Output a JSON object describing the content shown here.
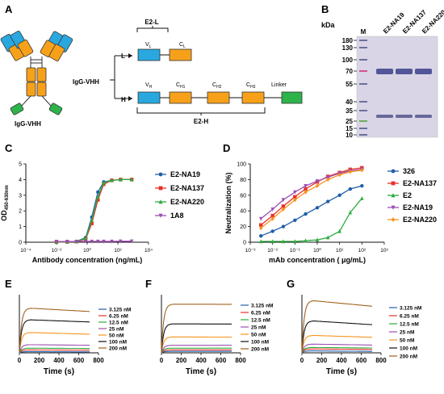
{
  "panels": {
    "A": {
      "label": "A",
      "antibody_label": "IgG-VHH",
      "construct_label": "IgG-VHH",
      "light_label": "L",
      "heavy_label": "H",
      "e2l_label": "E2-L",
      "e2h_label": "E2-H",
      "linker_label": "Linker",
      "vl": "V",
      "vl_sub": "L",
      "cl": "C",
      "cl_sub": "L",
      "vh": "V",
      "vh_sub": "H",
      "ch1": "C",
      "ch1_sub": "H1",
      "ch2": "C",
      "ch2_sub": "H2",
      "ch3": "C",
      "ch3_sub": "H3",
      "colors": {
        "variable": "#29a8e0",
        "constant": "#f7a11a",
        "vhh": "#2db34a"
      }
    },
    "B": {
      "label": "B",
      "kda_label": "kDa",
      "marker_label": "M",
      "lanes": [
        "E2-NA19",
        "E2-NA137",
        "E2-NA220"
      ],
      "markers": [
        "180",
        "130",
        "100",
        "70",
        "55",
        "40",
        "35",
        "25",
        "15",
        "10"
      ]
    },
    "C": {
      "label": "C"
    },
    "D": {
      "label": "D"
    },
    "E": {
      "label": "E"
    },
    "F": {
      "label": "F"
    },
    "G": {
      "label": "G"
    }
  },
  "chart_data": [
    {
      "panel": "C",
      "type": "line",
      "xlabel": "Antibody concentration (ng/mL)",
      "ylabel": "OD",
      "ylabel_sub": "450-630nm",
      "xscale": "log",
      "xlim": [
        0.0001,
        10000
      ],
      "ylim": [
        0,
        5
      ],
      "xticks": [
        "10⁻⁴",
        "10⁻²",
        "10⁰",
        "10²",
        "10⁴"
      ],
      "yticks": [
        "0",
        "1",
        "2",
        "3",
        "4",
        "5"
      ],
      "legend_position": "right",
      "series": [
        {
          "name": "E2-NA19",
          "color": "#1f5fa8",
          "marker": "circle",
          "x": [
            0.01,
            0.05,
            0.2,
            0.8,
            2,
            5,
            12,
            40,
            150,
            800
          ],
          "y": [
            0.02,
            0.03,
            0.05,
            0.3,
            1.6,
            3.2,
            3.85,
            3.95,
            4.0,
            4.0
          ]
        },
        {
          "name": "E2-NA137",
          "color": "#e8322b",
          "marker": "square",
          "x": [
            0.01,
            0.05,
            0.2,
            0.8,
            2,
            5,
            12,
            40,
            150,
            800
          ],
          "y": [
            0.01,
            0.02,
            0.04,
            0.2,
            1.2,
            2.7,
            3.7,
            3.95,
            4.0,
            4.0
          ]
        },
        {
          "name": "E2-NA220",
          "color": "#2bab3e",
          "marker": "triangle",
          "x": [
            0.01,
            0.05,
            0.2,
            0.8,
            2,
            5,
            12,
            40,
            150,
            800
          ],
          "y": [
            0.02,
            0.02,
            0.05,
            0.25,
            1.4,
            2.9,
            3.8,
            3.95,
            4.0,
            4.0
          ]
        },
        {
          "name": "1A8",
          "color": "#9b4fb0",
          "marker": "triangle-down",
          "x": [
            0.01,
            0.05,
            0.2,
            0.8,
            2,
            5,
            12,
            40,
            150,
            800
          ],
          "y": [
            0.04,
            0.04,
            0.04,
            0.05,
            0.05,
            0.05,
            0.05,
            0.05,
            0.06,
            0.06
          ]
        }
      ]
    },
    {
      "panel": "D",
      "type": "line",
      "xlabel": "mAb concentration ( μg/mL)",
      "ylabel": "Neutralization (%)",
      "xscale": "log",
      "xlim": [
        0.001,
        1000
      ],
      "ylim": [
        0,
        100
      ],
      "xticks": [
        "10⁻³",
        "10⁻²",
        "10⁻¹",
        "10⁰",
        "10¹",
        "10²",
        "10³"
      ],
      "yticks": [
        "0",
        "20",
        "40",
        "60",
        "80",
        "100"
      ],
      "legend_position": "right",
      "series": [
        {
          "name": "326",
          "color": "#1f5fa8",
          "marker": "circle",
          "x": [
            0.003,
            0.01,
            0.03,
            0.1,
            0.3,
            1,
            3,
            10,
            30,
            100
          ],
          "y": [
            8,
            14,
            20,
            28,
            36,
            44,
            52,
            60,
            68,
            72
          ]
        },
        {
          "name": "E2-NA137",
          "color": "#e8322b",
          "marker": "square",
          "x": [
            0.003,
            0.01,
            0.03,
            0.1,
            0.3,
            1,
            3,
            10,
            30,
            100
          ],
          "y": [
            22,
            34,
            46,
            58,
            68,
            77,
            84,
            89,
            93,
            95
          ]
        },
        {
          "name": "E2",
          "color": "#2bab3e",
          "marker": "triangle",
          "x": [
            0.003,
            0.01,
            0.03,
            0.1,
            0.3,
            1,
            3,
            10,
            30,
            100
          ],
          "y": [
            1,
            1,
            1,
            1,
            2,
            3,
            6,
            14,
            38,
            56
          ]
        },
        {
          "name": "E2-NA19",
          "color": "#9b4fb0",
          "marker": "triangle-down",
          "x": [
            0.003,
            0.01,
            0.03,
            0.1,
            0.3,
            1,
            3,
            10,
            30,
            100
          ],
          "y": [
            30,
            42,
            54,
            64,
            72,
            78,
            83,
            88,
            91,
            93
          ]
        },
        {
          "name": "E2-NA220",
          "color": "#f7931e",
          "marker": "diamond",
          "x": [
            0.003,
            0.01,
            0.03,
            0.1,
            0.3,
            1,
            3,
            10,
            30,
            100
          ],
          "y": [
            18,
            30,
            42,
            54,
            64,
            72,
            80,
            86,
            90,
            92
          ]
        }
      ]
    },
    {
      "panel": "E",
      "type": "line",
      "xlabel": "Time (s)",
      "xlim": [
        0,
        800
      ],
      "ylim": [
        0,
        100
      ],
      "xticks": [
        "0",
        "200",
        "400",
        "600",
        "800"
      ],
      "legend_position": "right",
      "series": [
        {
          "name": "3.125 nM",
          "color": "#1f5fa8",
          "assoc": 2,
          "dissoc": 1.6
        },
        {
          "name": "6.25 nM",
          "color": "#e8322b",
          "assoc": 5,
          "dissoc": 4.5
        },
        {
          "name": "12.5 nM",
          "color": "#2bab3e",
          "assoc": 8,
          "dissoc": 7.5
        },
        {
          "name": "25 nM",
          "color": "#9b4fb0",
          "assoc": 14,
          "dissoc": 13
        },
        {
          "name": "50 nM",
          "color": "#f7931e",
          "assoc": 35,
          "dissoc": 32
        },
        {
          "name": "100 nM",
          "color": "#111111",
          "assoc": 57,
          "dissoc": 53
        },
        {
          "name": "200 nM",
          "color": "#a0621e",
          "assoc": 77,
          "dissoc": 71
        }
      ]
    },
    {
      "panel": "F",
      "type": "line",
      "xlabel": "Time (s)",
      "xlim": [
        0,
        800
      ],
      "ylim": [
        0,
        200
      ],
      "xticks": [
        "0",
        "200",
        "400",
        "600",
        "800"
      ],
      "legend_position": "right",
      "series": [
        {
          "name": "3.125 nM",
          "color": "#1f5fa8",
          "assoc": 5,
          "dissoc": 5
        },
        {
          "name": "6.25 nM",
          "color": "#e8322b",
          "assoc": 10,
          "dissoc": 10
        },
        {
          "name": "12.5 nM",
          "color": "#2bab3e",
          "assoc": 16,
          "dissoc": 16
        },
        {
          "name": "25 nM",
          "color": "#9b4fb0",
          "assoc": 26,
          "dissoc": 26
        },
        {
          "name": "50 nM",
          "color": "#f7931e",
          "assoc": 55,
          "dissoc": 54
        },
        {
          "name": "100 nM",
          "color": "#111111",
          "assoc": 100,
          "dissoc": 99
        },
        {
          "name": "200 nM",
          "color": "#a0621e",
          "assoc": 168,
          "dissoc": 167
        }
      ]
    },
    {
      "panel": "G",
      "type": "line",
      "xlabel": "Time (s)",
      "xlim": [
        0,
        800
      ],
      "ylim": [
        0,
        60
      ],
      "xticks": [
        "0",
        "200",
        "400",
        "600",
        "800"
      ],
      "legend_position": "right",
      "series": [
        {
          "name": "3.125 nM",
          "color": "#1f5fa8",
          "assoc": 2,
          "dissoc": 1.5
        },
        {
          "name": "6.25 nM",
          "color": "#e8322b",
          "assoc": 4,
          "dissoc": 3.5
        },
        {
          "name": "12.5 nM",
          "color": "#2bab3e",
          "assoc": 5.5,
          "dissoc": 5
        },
        {
          "name": "25 nM",
          "color": "#9b4fb0",
          "assoc": 9,
          "dissoc": 8
        },
        {
          "name": "50 nM",
          "color": "#f7931e",
          "assoc": 18,
          "dissoc": 16
        },
        {
          "name": "100 nM",
          "color": "#111111",
          "assoc": 33,
          "dissoc": 29
        },
        {
          "name": "200 nM",
          "color": "#a0621e",
          "assoc": 54,
          "dissoc": 48
        }
      ]
    }
  ]
}
